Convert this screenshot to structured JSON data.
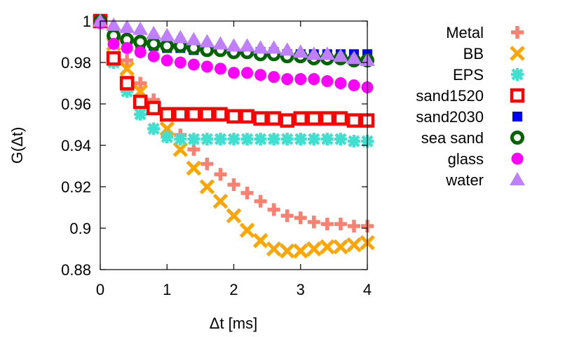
{
  "chart_data": {
    "type": "scatter",
    "title": "",
    "xlabel": "Δt [ms]",
    "ylabel": "G(Δt)",
    "xlim": [
      0,
      4
    ],
    "ylim": [
      0.88,
      1.0
    ],
    "xticks": [
      0,
      1,
      2,
      3,
      4
    ],
    "yticks": [
      0.88,
      0.9,
      0.92,
      0.94,
      0.96,
      0.98,
      1
    ],
    "ytick_labels": [
      "0.88",
      "0.9",
      "0.92",
      "0.94",
      "0.96",
      "0.98",
      "1"
    ],
    "grid": false,
    "legend_position": "right",
    "x": [
      0,
      0.2,
      0.4,
      0.6,
      0.8,
      1.0,
      1.2,
      1.4,
      1.6,
      1.8,
      2.0,
      2.2,
      2.4,
      2.6,
      2.8,
      3.0,
      3.2,
      3.4,
      3.6,
      3.8,
      4.0
    ],
    "series": [
      {
        "name": "Metal",
        "marker": "plus",
        "color": "#fa8072",
        "values": [
          1.0,
          0.991,
          0.981,
          0.97,
          0.962,
          0.955,
          0.945,
          0.938,
          0.931,
          0.926,
          0.921,
          0.917,
          0.913,
          0.909,
          0.906,
          0.905,
          0.903,
          0.902,
          0.902,
          0.901,
          0.901
        ]
      },
      {
        "name": "BB",
        "marker": "x",
        "color": "#ffa500",
        "values": [
          1.0,
          0.989,
          0.977,
          0.966,
          0.958,
          0.948,
          0.938,
          0.929,
          0.92,
          0.913,
          0.906,
          0.899,
          0.894,
          0.89,
          0.889,
          0.889,
          0.89,
          0.891,
          0.891,
          0.892,
          0.893
        ]
      },
      {
        "name": "EPS",
        "marker": "star",
        "color": "#40e0d0",
        "values": [
          1.0,
          0.98,
          0.966,
          0.955,
          0.948,
          0.944,
          0.943,
          0.943,
          0.943,
          0.943,
          0.943,
          0.943,
          0.943,
          0.943,
          0.943,
          0.943,
          0.943,
          0.943,
          0.943,
          0.942,
          0.942
        ]
      },
      {
        "name": "sand1520",
        "marker": "square-open",
        "color": "#ff0000",
        "values": [
          1.0,
          0.982,
          0.97,
          0.961,
          0.958,
          0.955,
          0.955,
          0.955,
          0.955,
          0.955,
          0.954,
          0.954,
          0.953,
          0.953,
          0.952,
          0.953,
          0.953,
          0.953,
          0.953,
          0.952,
          0.952
        ]
      },
      {
        "name": "sand2030",
        "marker": "square",
        "color": "#0000ff",
        "values": [
          1.0,
          0.992,
          0.99,
          0.989,
          0.988,
          0.987,
          0.987,
          0.986,
          0.986,
          0.986,
          0.985,
          0.985,
          0.985,
          0.985,
          0.984,
          0.984,
          0.984,
          0.984,
          0.984,
          0.984,
          0.984
        ]
      },
      {
        "name": "sea sand",
        "marker": "circle-open",
        "color": "#006400",
        "values": [
          1.0,
          0.993,
          0.991,
          0.99,
          0.989,
          0.988,
          0.988,
          0.987,
          0.986,
          0.986,
          0.985,
          0.985,
          0.984,
          0.984,
          0.983,
          0.983,
          0.982,
          0.982,
          0.982,
          0.981,
          0.981
        ]
      },
      {
        "name": "glass",
        "marker": "circle",
        "color": "#ff00ff",
        "values": [
          0.999,
          0.989,
          0.987,
          0.985,
          0.983,
          0.981,
          0.98,
          0.979,
          0.978,
          0.977,
          0.975,
          0.975,
          0.974,
          0.973,
          0.972,
          0.972,
          0.972,
          0.971,
          0.97,
          0.969,
          0.968
        ]
      },
      {
        "name": "water",
        "marker": "triangle",
        "color": "#bf7fff",
        "values": [
          1.0,
          0.998,
          0.997,
          0.996,
          0.994,
          0.993,
          0.992,
          0.991,
          0.99,
          0.989,
          0.988,
          0.988,
          0.987,
          0.987,
          0.986,
          0.985,
          0.984,
          0.984,
          0.983,
          0.982,
          0.981
        ]
      }
    ]
  }
}
